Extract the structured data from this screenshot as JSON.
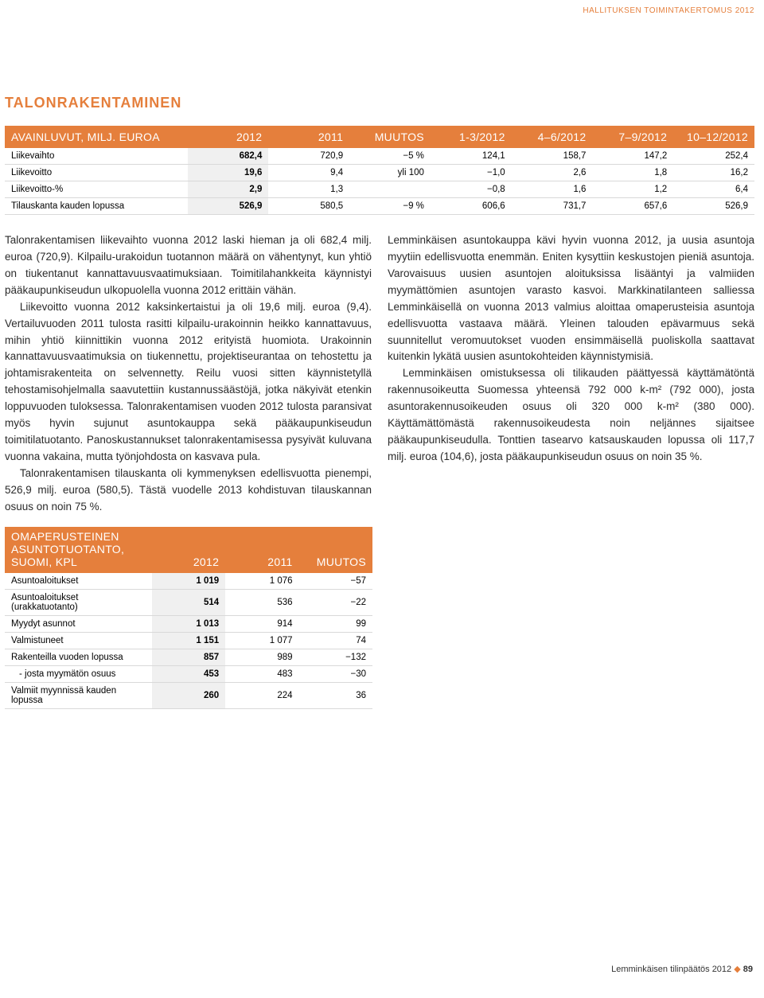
{
  "header_tag": "HALLITUKSEN TOIMINTAKERTOMUS 2012",
  "section_title": "TALONRAKENTAMINEN",
  "colors": {
    "accent": "#e57f3c",
    "highlight_bg": "#f0f0f0",
    "rule": "#d9d9d9",
    "text": "#2b2b2b",
    "bg": "#ffffff"
  },
  "table1": {
    "columns": [
      "AVAINLUVUT, MILJ. EUROA",
      "2012",
      "2011",
      "MUUTOS",
      "1-3/2012",
      "4–6/2012",
      "7–9/2012",
      "10–12/2012"
    ],
    "highlight_col": 1,
    "rows": [
      [
        "Liikevaihto",
        "682,4",
        "720,9",
        "−5 %",
        "124,1",
        "158,7",
        "147,2",
        "252,4"
      ],
      [
        "Liikevoitto",
        "19,6",
        "9,4",
        "yli 100",
        "−1,0",
        "2,6",
        "1,8",
        "16,2"
      ],
      [
        "Liikevoitto-%",
        "2,9",
        "1,3",
        "",
        "−0,8",
        "1,6",
        "1,2",
        "6,4"
      ],
      [
        "Tilauskanta kauden lopussa",
        "526,9",
        "580,5",
        "−9 %",
        "606,6",
        "731,7",
        "657,6",
        "526,9"
      ]
    ]
  },
  "body": {
    "left": [
      "Talonrakentamisen liikevaihto vuonna 2012 laski hieman ja oli 682,4 milj. euroa (720,9). Kilpailu-urakoidun tuotannon määrä on vähentynyt, kun yhtiö on tiukentanut kannattavuusvaatimuksiaan. Toimitilahankkeita käynnistyi pääkaupunkiseudun ulkopuolella vuonna 2012 erittäin vähän.",
      "Liikevoitto vuonna 2012 kaksinkertaistui ja oli 19,6 milj. euroa (9,4). Vertailuvuoden 2011 tulosta rasitti kilpailu-urakoinnin heikko kannattavuus, mihin yhtiö kiinnittikin vuonna 2012 erityistä huomiota. Urakoinnin kannattavuusvaatimuksia on tiukennettu, projektiseurantaa on tehostettu ja johtamisrakenteita on selvennetty. Reilu vuosi sitten käynnistetyllä tehostamisohjelmalla saavutettiin kustannussäästöjä, jotka näkyivät etenkin loppuvuoden tuloksessa. Talonrakentamisen vuoden 2012 tulosta paransivat myös hyvin sujunut asuntokauppa sekä pääkaupunkiseudun toimitilatuotanto. Panoskustannukset talonrakentamisessa pysyivät kuluvana vuonna vakaina, mutta työnjohdosta on kasvava pula.",
      "Talonrakentamisen tilauskanta oli kymmenyksen edellisvuotta pienempi, 526,9 milj. euroa (580,5). Tästä vuodelle 2013 kohdistuvan tilauskannan osuus on noin 75 %."
    ],
    "right": [
      "Lemminkäisen asuntokauppa kävi hyvin vuonna 2012, ja uusia asuntoja myytiin edellisvuotta enemmän. Eniten kysyttiin keskustojen pieniä asuntoja. Varovaisuus uusien asuntojen aloituksissa lisääntyi ja valmiiden myymättömien asuntojen varasto kasvoi. Markkinatilanteen salliessa Lemminkäisellä on vuonna 2013 valmius aloittaa omaperusteisia asuntoja edellisvuotta vastaava määrä. Yleinen talouden epävarmuus sekä suunnitellut veromuutokset vuoden ensimmäisellä puoliskolla saattavat kuitenkin lykätä uusien asuntokohteiden käynnistymisiä.",
      "Lemminkäisen omistuksessa oli tilikauden päättyessä käyttämätöntä rakennusoikeutta Suomessa yhteensä 792 000 k-m² (792 000), josta asuntorakennusoikeuden osuus oli 320 000 k-m² (380 000). Käyttämättömästä rakennusoikeudesta noin neljännes sijaitsee pääkaupunkiseudulla. Tonttien tasearvo katsauskauden lopussa oli 117,7 milj. euroa (104,6), josta pääkaupunkiseudun osuus on noin 35 %."
    ]
  },
  "table2": {
    "header": [
      "OMAPERUSTEINEN\nASUNTOTUOTANTO, SUOMI, KPL",
      "2012",
      "2011",
      "MUUTOS"
    ],
    "highlight_col": 1,
    "rows": [
      {
        "cells": [
          "Asuntoaloitukset",
          "1 019",
          "1 076",
          "−57"
        ],
        "sub": false
      },
      {
        "cells": [
          "Asuntoaloitukset (urakkatuotanto)",
          "514",
          "536",
          "−22"
        ],
        "sub": false
      },
      {
        "cells": [
          "Myydyt asunnot",
          "1 013",
          "914",
          "99"
        ],
        "sub": false
      },
      {
        "cells": [
          "Valmistuneet",
          "1 151",
          "1 077",
          "74"
        ],
        "sub": false
      },
      {
        "cells": [
          "Rakenteilla vuoden lopussa",
          "857",
          "989",
          "−132"
        ],
        "sub": false
      },
      {
        "cells": [
          "- josta myymätön osuus",
          "453",
          "483",
          "−30"
        ],
        "sub": true
      },
      {
        "cells": [
          "Valmiit myynnissä kauden lopussa",
          "260",
          "224",
          "36"
        ],
        "sub": false
      }
    ]
  },
  "footer": {
    "text": "Lemminkäisen tilinpäätös 2012",
    "page": "89"
  }
}
